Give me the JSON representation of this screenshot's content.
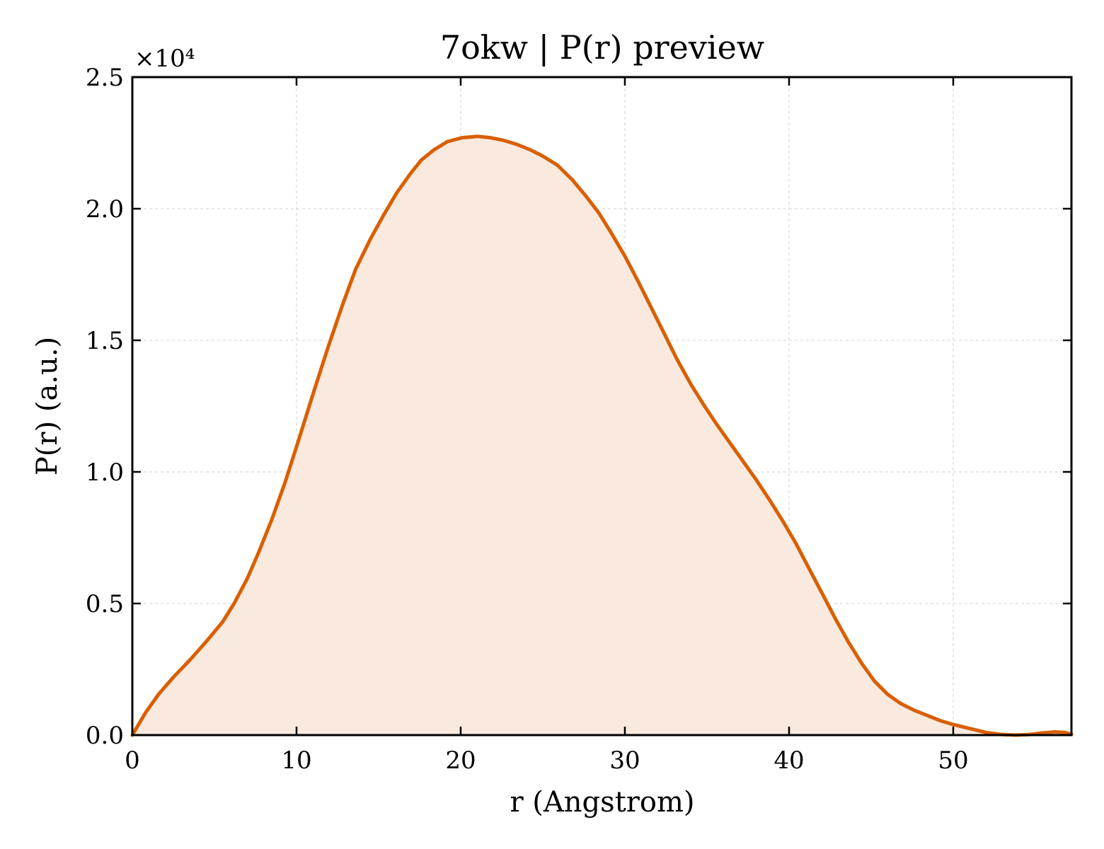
{
  "chart_data": {
    "type": "area",
    "title": "7okw | P(r) preview",
    "xlabel": "r (Angstrom)",
    "ylabel": "P(r) (a.u.)",
    "y_offset_label": "×10⁴",
    "y_scale": 10000,
    "xlim": [
      0,
      57.2
    ],
    "ylim": [
      0,
      25000
    ],
    "x_ticks": [
      0,
      10,
      20,
      30,
      40,
      50
    ],
    "y_ticks": [
      0,
      5000,
      10000,
      15000,
      20000,
      25000
    ],
    "y_tick_labels": [
      "0.0",
      "0.5",
      "1.0",
      "1.5",
      "2.0",
      "2.5"
    ],
    "grid": true,
    "line_color": "#d95f02",
    "fill_color": "#f9e9de",
    "series": [
      {
        "x": [
          0,
          0.8,
          1.6,
          2.5,
          3.5,
          4.5,
          5.5,
          6.2,
          7.0,
          7.7,
          8.5,
          9.3,
          10.1,
          11.0,
          11.9,
          12.8,
          13.6,
          14.5,
          15.3,
          16.1,
          16.9,
          17.6,
          18.4,
          19.2,
          20.1,
          21.0,
          21.8,
          22.6,
          23.4,
          24.2,
          25.0,
          25.9,
          26.8,
          27.6,
          28.4,
          29.2,
          30.0,
          30.8,
          31.6,
          32.4,
          33.2,
          34.0,
          34.8,
          35.6,
          36.4,
          37.2,
          38.0,
          38.8,
          39.6,
          40.4,
          41.2,
          42.0,
          42.8,
          43.6,
          44.4,
          45.2,
          46.0,
          46.8,
          47.6,
          48.4,
          49.2,
          50.0,
          51.0,
          52.0,
          53.0,
          53.8,
          54.6,
          55.4,
          56.2,
          56.8,
          57.2
        ],
        "y": [
          0,
          850,
          1550,
          2200,
          2850,
          3550,
          4300,
          5000,
          5950,
          6950,
          8200,
          9600,
          11150,
          12950,
          14700,
          16350,
          17700,
          18850,
          19750,
          20600,
          21300,
          21850,
          22250,
          22550,
          22700,
          22750,
          22700,
          22600,
          22450,
          22250,
          22000,
          21650,
          21100,
          20500,
          19850,
          19050,
          18200,
          17250,
          16250,
          15250,
          14250,
          13350,
          12550,
          11800,
          11100,
          10400,
          9700,
          8950,
          8150,
          7300,
          6350,
          5400,
          4450,
          3550,
          2750,
          2050,
          1550,
          1200,
          950,
          750,
          550,
          400,
          250,
          100,
          20,
          0,
          20,
          80,
          120,
          100,
          30
        ]
      }
    ]
  }
}
